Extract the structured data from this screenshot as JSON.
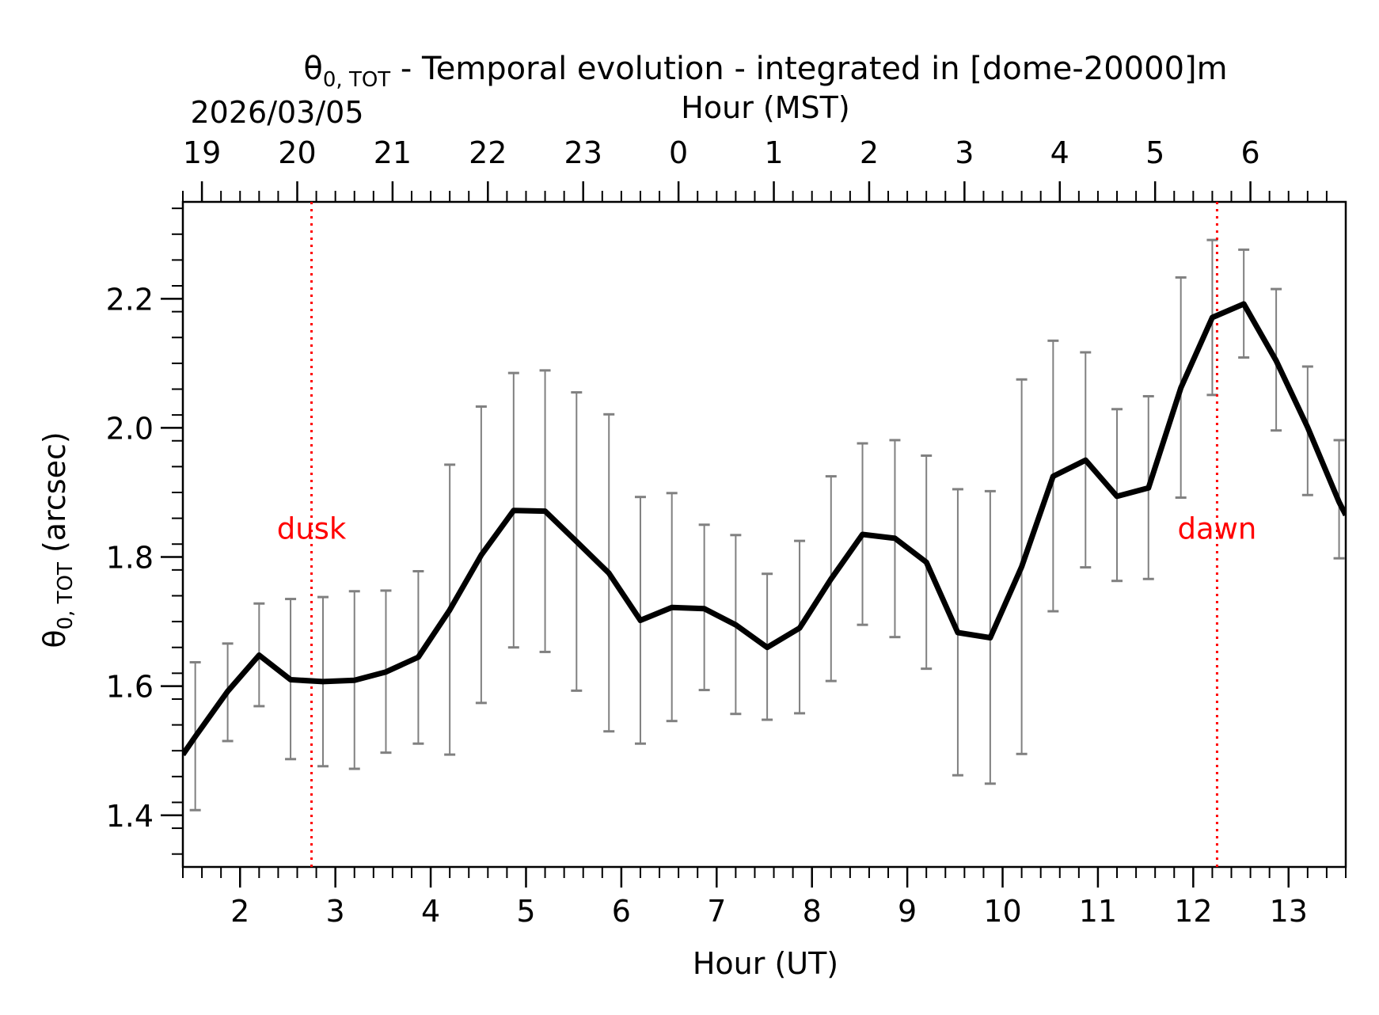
{
  "chart_data": {
    "type": "line",
    "title_symbol": "θ",
    "title_subscript": "0, TOT",
    "title_rest": " - Temporal evolution - integrated in [dome-20000]m",
    "date_label": "2026/03/05",
    "xlabel": "Hour (UT)",
    "x2label": "Hour (MST)",
    "ylabel_symbol": "θ",
    "ylabel_subscript": "0, TOT",
    "ylabel_rest": " (arcsec)",
    "xlim": [
      1.4,
      13.6
    ],
    "ylim": [
      1.32,
      2.35
    ],
    "xticks": [
      2,
      3,
      4,
      5,
      6,
      7,
      8,
      9,
      10,
      11,
      12,
      13
    ],
    "xtick_labels": [
      "2",
      "3",
      "4",
      "5",
      "6",
      "7",
      "8",
      "9",
      "10",
      "11",
      "12",
      "13"
    ],
    "x2ticks": [
      1.6,
      2.6,
      3.6,
      4.6,
      5.6,
      6.6,
      7.6,
      8.6,
      9.6,
      10.6,
      11.6,
      12.6
    ],
    "x2tick_labels": [
      "19",
      "20",
      "21",
      "22",
      "23",
      "0",
      "1",
      "2",
      "3",
      "4",
      "5",
      "6"
    ],
    "yticks": [
      1.4,
      1.6,
      1.8,
      2.0,
      2.2
    ],
    "ytick_labels": [
      "1.4",
      "1.6",
      "1.8",
      "2.0",
      "2.2"
    ],
    "series": [
      {
        "name": "theta0_tot",
        "color": "#000000",
        "x": [
          1.4,
          1.53,
          1.87,
          2.2,
          2.53,
          2.87,
          3.2,
          3.53,
          3.87,
          4.2,
          4.53,
          4.87,
          5.2,
          5.53,
          5.87,
          6.2,
          6.53,
          6.87,
          7.2,
          7.53,
          7.87,
          8.2,
          8.53,
          8.87,
          9.2,
          9.53,
          9.87,
          10.2,
          10.53,
          10.87,
          11.2,
          11.53,
          11.87,
          12.2,
          12.53,
          12.87,
          13.2,
          13.53,
          13.6
        ],
        "y": [
          1.494,
          1.522,
          1.592,
          1.648,
          1.61,
          1.607,
          1.609,
          1.622,
          1.645,
          1.718,
          1.803,
          1.872,
          1.871,
          1.824,
          1.775,
          1.702,
          1.722,
          1.72,
          1.695,
          1.66,
          1.69,
          1.766,
          1.835,
          1.829,
          1.792,
          1.683,
          1.675,
          1.785,
          1.925,
          1.95,
          1.894,
          1.907,
          2.062,
          2.171,
          2.192,
          2.104,
          2.001,
          1.885,
          1.865
        ]
      }
    ],
    "errorbars": {
      "color": "#808080",
      "x": [
        1.53,
        1.87,
        2.2,
        2.53,
        2.87,
        3.2,
        3.53,
        3.87,
        4.2,
        4.53,
        4.87,
        5.2,
        5.53,
        5.87,
        6.2,
        6.53,
        6.87,
        7.2,
        7.53,
        7.87,
        8.2,
        8.53,
        8.87,
        9.2,
        9.53,
        9.87,
        10.2,
        10.53,
        10.87,
        11.2,
        11.53,
        11.87,
        12.2,
        12.53,
        12.87,
        13.2,
        13.53
      ],
      "low": [
        1.408,
        1.515,
        1.569,
        1.487,
        1.476,
        1.472,
        1.497,
        1.511,
        1.494,
        1.574,
        1.66,
        1.653,
        1.593,
        1.53,
        1.511,
        1.546,
        1.594,
        1.557,
        1.548,
        1.558,
        1.608,
        1.695,
        1.676,
        1.627,
        1.462,
        1.449,
        1.495,
        1.716,
        1.784,
        1.763,
        1.766,
        1.892,
        2.051,
        2.109,
        1.996,
        1.896,
        1.798
      ],
      "high": [
        1.637,
        1.666,
        1.728,
        1.735,
        1.738,
        1.747,
        1.748,
        1.778,
        1.943,
        2.033,
        2.085,
        2.089,
        2.055,
        2.021,
        1.893,
        1.899,
        1.85,
        1.834,
        1.774,
        1.825,
        1.925,
        1.976,
        1.981,
        1.957,
        1.905,
        1.902,
        2.075,
        2.135,
        2.117,
        2.029,
        2.049,
        2.233,
        2.291,
        2.276,
        2.215,
        2.095,
        1.981
      ]
    },
    "annotations": [
      {
        "label": "dusk",
        "x": 2.75,
        "color": "#ff0000"
      },
      {
        "label": "dawn",
        "x": 12.25,
        "color": "#ff0000"
      }
    ]
  }
}
